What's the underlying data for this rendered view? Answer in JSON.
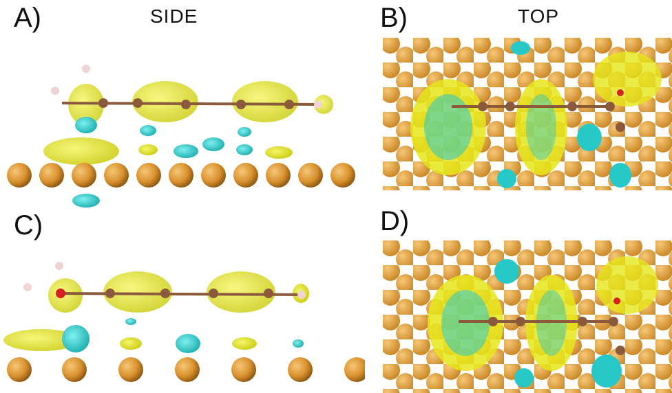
{
  "labels": {
    "panel_a": "A)",
    "panel_b": "B)",
    "panel_c": "C)",
    "panel_d": "D)",
    "side_title": "SIDE",
    "top_title": "TOP"
  },
  "colors": {
    "gold_atom": "#d9912e",
    "gold_atom_highlight": "#f6c777",
    "carbon_atom": "#8b5a3c",
    "hydrogen_atom": "#f0d4d4",
    "oxygen_atom": "#d42020",
    "yellow_isosurface": "#e6e61a",
    "cyan_isosurface": "#27c8c8",
    "background": "#ffffff"
  }
}
